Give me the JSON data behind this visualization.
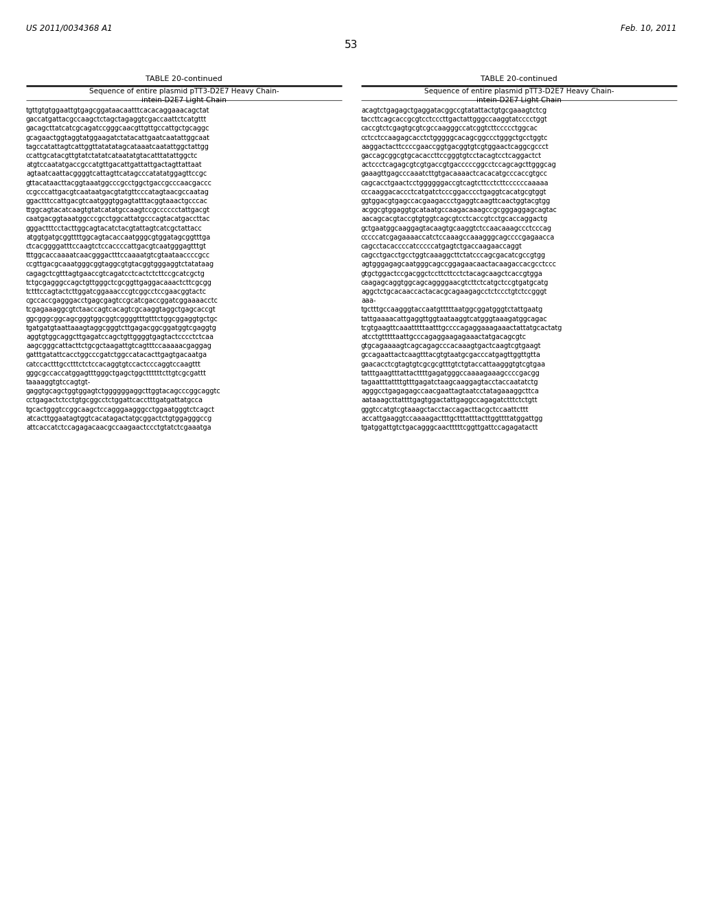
{
  "page_header_left": "US 2011/0034368 A1",
  "page_header_right": "Feb. 10, 2011",
  "page_number": "53",
  "table_title": "TABLE 20-continued",
  "table_subtitle_line1": "Sequence of entire plasmid pTT3-D2E7 Heavy Chain-",
  "table_subtitle_line2": "intein-D2E7 Light Chain",
  "left_column_text": [
    "tgttgtgtggaattgtgagcggataacaatttcacacaggaaacagctat",
    "gaccatgattacgccaagctctagctagaggtcgaccaattctcatgttt",
    "gacagcttatcatcgcagatccgggcaacgttgttgccattgctgcaggc",
    "gcagaactggtaggtatggaagatctatacattgaatcaatattggcaat",
    "tagccatattagtcattggttatatatagcataaatcaatattggctattgg",
    "ccattgcatacgttgtatctatatcataatatgtacatttatattggctc",
    "atgtccaatatgaccgccatgttgacattgattattgactagttattaat",
    "agtaatcaattacggggtcattagttcatagcccatatatggagttccgc",
    "gttacataacttacggtaaatggcccgcctggctgaccgcccaacgaccc",
    "ccgcccattgacgtcaataatgacgtatgttcccatagtaacgccaatag",
    "ggactttccattgacgtcaatgggtggagtatttacggtaaactgcccac",
    "ttggcagtacatcaagtgtatcatatgccaagtccgcccccctattgacgt",
    "caatgacggtaaatggcccgcctggcattatgcccagtacatgaccttac",
    "gggactttcctacttggcagtacatctacgtattagtcatcgctattacc",
    "atggtgatgcggttttggcagtacaccaatgggcgtggatagcggtttga",
    "ctcacggggatttccaagtctccaccccattgacgtcaatgggagtttgt",
    "tttggcaccaaaatcaacgggactttccaaaatgtcgtaataaccccgcc",
    "ccgttgacgcaaatgggcggtaggcgtgtacggtgggaggtctatataag",
    "cagagctcgtttagtgaaccgtcagatcctcactctcttccgcatcgctg",
    "tctgcgagggccagctgttgggctcgcggttgaggacaaactcttcgcgg",
    "tctttccagtactcttggatcggaaacccgtcggcctccgaacggtactc",
    "cgccaccgagggacctgagcgagtccgcatcgaccggatcggaaaacctc",
    "tcgagaaaggcgtctaaccagtcacagtcgcaaggtaggctgagcaccgt",
    "ggcgggcggcagcgggtggcggtcggggtttgtttctggcggaggtgctgc",
    "tgatgatgtaattaaagtaggcgggtcttgagacggcggatggtcgaggtg",
    "aggtgtggcaggcttgagatccagctgttggggtgagtactcccctctcaa",
    "aagcgggcattacttctgcgctaagattgtcagtttccaaaaacgaggag",
    "gatttgatattcacctggcccgatctggccatacacttgagtgacaatga",
    "catccactttgcctttctctccacaggtgtccactcccaggtccaagttt",
    "gggcgccaccatggagtttgggctgagctggcttttttcttgtcgcgattt",
    "taaaaggtgtccagtgt-",
    "gaggtgcagctggtggagtctggggggaggcttggtacagcccggcaggtc",
    "cctgagactctcctgtgcggcctctggattcacctttgatgattatgcca",
    "tgcactgggtccggcaagctccagggaagggcctggaatgggtctcagct",
    "atcacttggaatagtggtcacatagactatgcggactctgtggagggccg",
    "attcaccatctccagagacaacgccaagaactccctgtatctcgaaatga"
  ],
  "right_column_text": [
    "acagtctgagagctgaggatacggccgtatattactgtgcgaaagtctcg",
    "taccttcagcaccgcgtcctcccttgactattgggccaaggtatcccctggt",
    "caccgtctcgagtgcgtcgccaagggccatcggtcttccccctggcac",
    "cctcctccaagagcacctctgggggcacagcggccctgggctgcctggtc",
    "aaggactacttccccgaaccggtgacggtgtcgtggaactcaggcgccct",
    "gaccagcggcgtgcacaccttccgggtgtcctacagtcctcaggactct",
    "actccctcagagcgtcgtgaccgtgacccccggcctccagcagcttgggcag",
    "gaaagttgagcccaaatcttgtgacaaaactcacacatgcccaccgtgcc",
    "cagcacctgaactcctggggggaccgtcagtcttcctcttccccccaaaaa",
    "cccaaggacaccctcatgatctcccggacccctgaggtcacatgcgtggt",
    "ggtggacgtgagccacgaagaccctgaggtcaagttcaactggtacgtgg",
    "acggcgtggaggtgcataatgccaagacaaagccgcgggaggagcagtac",
    "aacagcacgtaccgtgtggtcagcgtcctcaccgtcctgcaccaggactg",
    "gctgaatggcaaggagtacaagtgcaaggtctccaacaaagccctcccag",
    "cccccatcgagaaaaccatctccaaagccaaagggcagccccgagaacca",
    "cagcctacaccccatcccccatgagtctgaccaagaaccaggt",
    "cagcctgacctgcctggtcaaaggcttctatcccagcgacatcgccgtgg",
    "agtgggagagcaatgggcagccggagaacaactacaagaccacgcctccc",
    "gtgctggactccgacggctccttcttcctctacagcaagctcaccgtgga",
    "caagagcaggtggcagcaggggaacgtcttctcatgctccgtgatgcatg",
    "aggctctgcacaaccactacacgcagaagagcctctccctgtctccgggt",
    "aaa-",
    "tgctttgccaagggtaccaatgtttttaatggcggatgggtctattgaatg",
    "tattgaaaacattgaggttggtaataaggtcatgggtaaagatggcagac",
    "tcgtgaagttcaaatttttaatttgccccagaggaaagaaactattatgcactatg",
    "atcctgtttttaattgcccagaggaagagaaactatgacagcgtc",
    "gtgcagaaaagtcagcagagcccacaaagtgactcaagtcgtgaagt",
    "gccagaattactcaagtttacgtgtaatgcgacccatgagttggttgtta",
    "gaacacctcgtagtgtcgcgcgtttgtctgtaccattaagggtgtcgtgaa",
    "tatttgaagtttattacttttgagatgggccaaaagaaagccccgacgg",
    "tagaatttattttgtttgagatctaagcaaggagtacctaccaatatctg",
    "agggcctgagagagccaacgaattagtaatcctatagaaaggcttca",
    "aataaagcttattttgagtggactattgaggccagagatctttctctgtt",
    "gggtccatgtcgtaaagctacctaccagacttacgctccaattcttt",
    "accattgaaggtccaaaagactttgctttatttacttggttttatggattgg",
    "tgatggattgtctgacagggcaactttttcggttgattccagagatactt"
  ],
  "background_color": "#ffffff",
  "text_color": "#000000"
}
